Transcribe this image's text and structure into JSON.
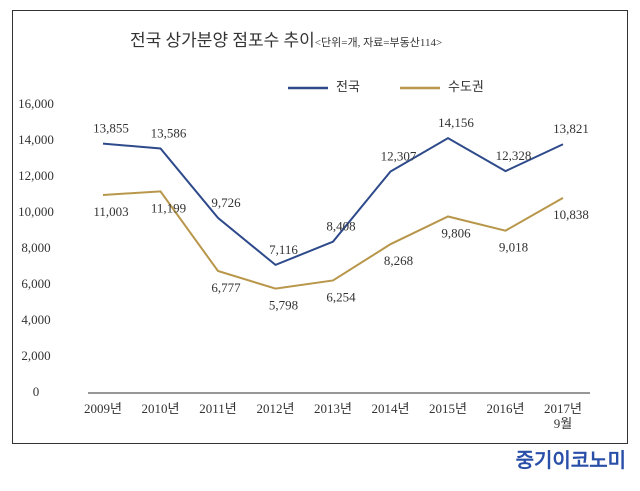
{
  "chart_data": {
    "type": "line",
    "title": "전국 상가분양 점포수 추이",
    "subtitle": "<단위=개, 자료=부동산114>",
    "categories": [
      "2009년",
      "2010년",
      "2011년",
      "2012년",
      "2013년",
      "2014년",
      "2015년",
      "2016년",
      "2017년\n9월"
    ],
    "series": [
      {
        "name": "전국",
        "color": "#2e4a8b",
        "values": [
          13855,
          13586,
          9726,
          7116,
          8408,
          12307,
          14156,
          12328,
          13821
        ],
        "value_labels": [
          "13,855",
          "13,586",
          "9,726",
          "7,116",
          "8,408",
          "12,307",
          "14,156",
          "12,328",
          "13,821"
        ]
      },
      {
        "name": "수도권",
        "color": "#b8964a",
        "values": [
          11003,
          11199,
          6777,
          5798,
          6254,
          8268,
          9806,
          9018,
          10838
        ],
        "value_labels": [
          "11,003",
          "11,199",
          "6,777",
          "5,798",
          "6,254",
          "8,268",
          "9,806",
          "9,018",
          "10,838"
        ]
      }
    ],
    "ylim": [
      0,
      16000
    ],
    "yticks": [
      0,
      {
        "value": 2000,
        "label": "2,000"
      },
      {
        "value": 4000,
        "label": "4,000"
      },
      {
        "value": 6000,
        "label": "6,000"
      },
      {
        "value": 8000,
        "label": "8,000"
      },
      {
        "value": 10000,
        "label": "10,000"
      },
      {
        "value": 12000,
        "label": "12,000"
      },
      {
        "value": 14000,
        "label": "14,000"
      },
      {
        "value": 16000,
        "label": "16,000"
      }
    ],
    "grid": false,
    "legend": "top",
    "watermark": "중기이코노미"
  }
}
